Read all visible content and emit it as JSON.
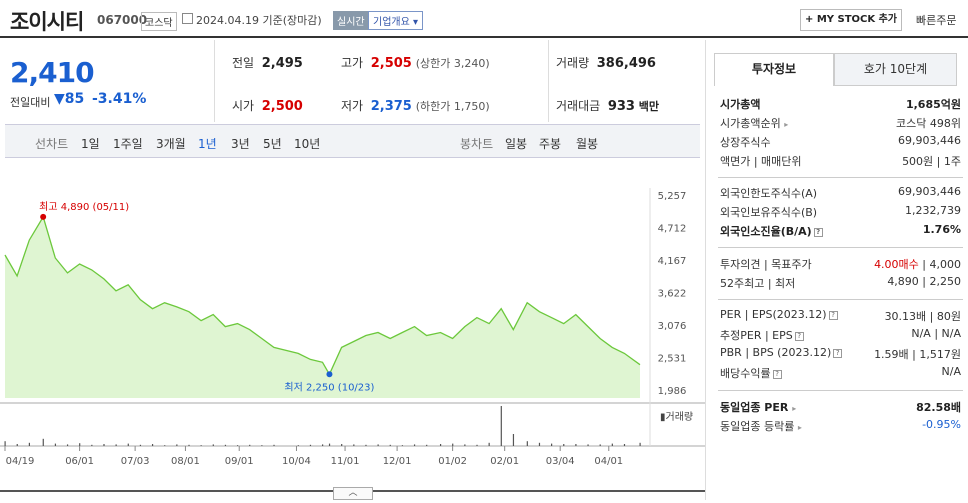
{
  "header": {
    "name": "조이시티",
    "code": "067000",
    "market": "코스닥",
    "date": "2024.04.19",
    "basis": "기준(장마감)",
    "realtime": "실시간",
    "company_info": "기업개요",
    "mystock": "+ MY STOCK 추가",
    "quick_order": "빠른주문"
  },
  "quote": {
    "price": "2,410",
    "change_label": "전일대비",
    "change_arrow": "▼",
    "change": "85",
    "change_pct": "-3.41%",
    "prev_label": "전일",
    "prev": "2,495",
    "high_label": "고가",
    "high": "2,505",
    "upper": "(상한가 3,240)",
    "volume_label": "거래량",
    "volume": "386,496",
    "open_label": "시가",
    "open": "2,500",
    "low_label": "저가",
    "low": "2,375",
    "lower": "(하한가 1,750)",
    "amount_label": "거래대금",
    "amount": "933",
    "amount_unit": "백만"
  },
  "toolbar": {
    "line_label": "선차트",
    "periods": [
      "1일",
      "1주일",
      "3개월",
      "1년",
      "3년",
      "5년",
      "10년"
    ],
    "active": "1년",
    "candle_label": "봉차트",
    "candles": [
      "일봉",
      "주봉",
      "월봉"
    ]
  },
  "chart_data": {
    "type": "area",
    "x": [
      "2023-04-19",
      "2023-04-26",
      "2023-05-03",
      "2023-05-11",
      "2023-05-18",
      "2023-05-25",
      "2023-06-01",
      "2023-06-08",
      "2023-06-15",
      "2023-06-22",
      "2023-06-29",
      "2023-07-06",
      "2023-07-13",
      "2023-07-20",
      "2023-07-27",
      "2023-08-03",
      "2023-08-10",
      "2023-08-17",
      "2023-08-24",
      "2023-08-31",
      "2023-09-07",
      "2023-09-14",
      "2023-09-21",
      "2023-10-05",
      "2023-10-12",
      "2023-10-19",
      "2023-10-23",
      "2023-10-30",
      "2023-11-06",
      "2023-11-13",
      "2023-11-20",
      "2023-11-27",
      "2023-12-04",
      "2023-12-11",
      "2023-12-18",
      "2023-12-26",
      "2024-01-02",
      "2024-01-09",
      "2024-01-16",
      "2024-01-23",
      "2024-01-30",
      "2024-02-06",
      "2024-02-14",
      "2024-02-21",
      "2024-02-28",
      "2024-03-06",
      "2024-03-13",
      "2024-03-20",
      "2024-03-27",
      "2024-04-03",
      "2024-04-10",
      "2024-04-19"
    ],
    "y": [
      4250,
      3900,
      4500,
      4890,
      4200,
      3950,
      4100,
      4000,
      3850,
      3650,
      3750,
      3500,
      3350,
      3450,
      3380,
      3300,
      3150,
      3250,
      3050,
      3100,
      3000,
      2850,
      2700,
      2600,
      2500,
      2450,
      2250,
      2700,
      2800,
      2900,
      2950,
      2850,
      2950,
      3050,
      2900,
      2950,
      2850,
      3050,
      3200,
      3100,
      3350,
      3000,
      3450,
      3300,
      3200,
      3100,
      3250,
      3050,
      2850,
      2700,
      2600,
      2410
    ],
    "volume": [
      0.12,
      0.05,
      0.08,
      0.18,
      0.06,
      0.04,
      0.07,
      0.03,
      0.05,
      0.04,
      0.06,
      0.03,
      0.05,
      0.02,
      0.04,
      0.03,
      0.02,
      0.04,
      0.03,
      0.02,
      0.03,
      0.02,
      0.03,
      0.02,
      0.03,
      0.04,
      0.06,
      0.05,
      0.04,
      0.03,
      0.04,
      0.03,
      0.02,
      0.04,
      0.03,
      0.05,
      0.06,
      0.04,
      0.03,
      0.08,
      1.0,
      0.3,
      0.12,
      0.08,
      0.06,
      0.05,
      0.05,
      0.04,
      0.04,
      0.06,
      0.05,
      0.08
    ],
    "ylim": [
      1986,
      5257
    ],
    "yticks": [
      "5,257",
      "4,712",
      "4,167",
      "3,622",
      "3,076",
      "2,531",
      "1,986"
    ],
    "xticks": [
      "04/19",
      "06/01",
      "07/03",
      "08/01",
      "09/01",
      "10/04",
      "11/01",
      "12/01",
      "01/02",
      "02/01",
      "03/04",
      "04/01"
    ],
    "max_label": "최고 4,890 (05/11)",
    "min_label": "최저 2,250 (10/23)",
    "volume_legend": "거래량",
    "line_color": "#6cc83c",
    "fill_color": "#dff5d2"
  },
  "invest": {
    "tab_info": "투자정보",
    "tab_hoga": "호가 10단계",
    "rows": [
      {
        "k": "시가총액",
        "v": "1,685억원",
        "bold": true
      },
      {
        "k": "시가총액순위",
        "v": "코스닥 498위",
        "arrow": true
      },
      {
        "k": "상장주식수",
        "v": "69,903,446"
      },
      {
        "k": "액면가 | 매매단위",
        "v": "500원 | 1주"
      }
    ],
    "rows2": [
      {
        "k": "외국인한도주식수(A)",
        "v": "69,903,446"
      },
      {
        "k": "외국인보유주식수(B)",
        "v": "1,232,739"
      },
      {
        "k": "외국인소진율(B/A)",
        "v": "1.76%",
        "bold": true,
        "q": true
      }
    ],
    "opinion_k": "투자의견 | 목표주가",
    "opinion_v": "4.00매수",
    "target_v": "4,000",
    "range_k": "52주최고 | 최저",
    "range_v": "4,890 | 2,250",
    "per_k": "PER | EPS(2023.12)",
    "per_v": "30.13배 | 80원",
    "est_k": "추정PER | EPS",
    "est_v": "N/A | N/A",
    "pbr_k": "PBR | BPS (2023.12)",
    "pbr_v": "1.59배 | 1,517원",
    "div_k": "배당수익률",
    "div_v": "N/A",
    "sector_per_k": "동일업종 PER",
    "sector_per_v": "82.58배",
    "sector_rate_k": "동일업종 등락률",
    "sector_rate_v": "-0.95%"
  }
}
